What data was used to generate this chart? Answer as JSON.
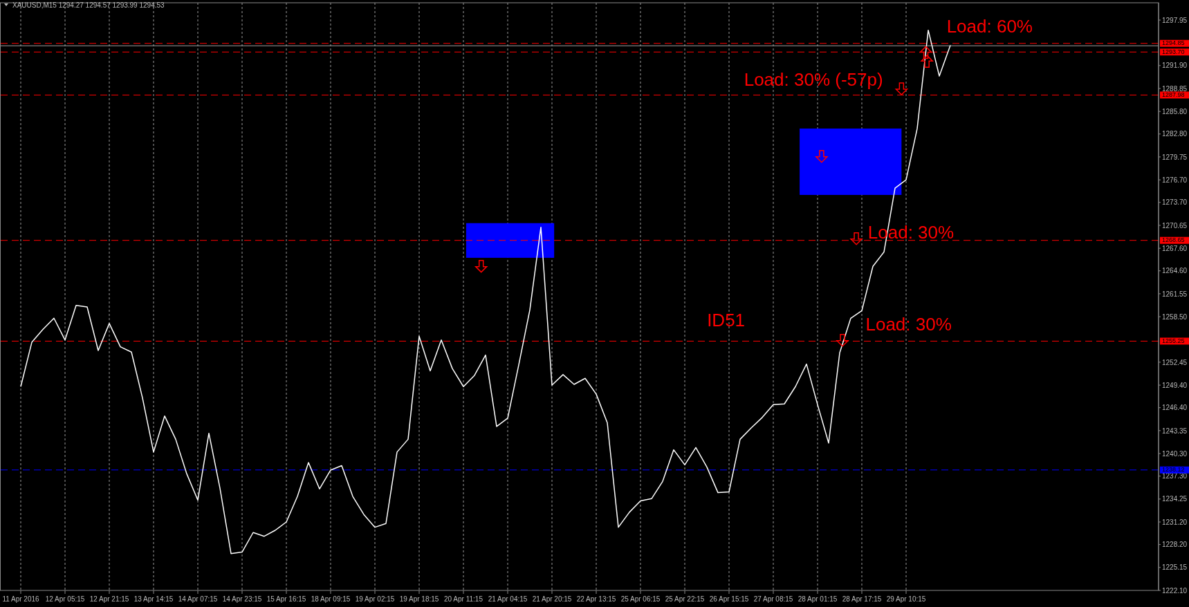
{
  "chart_data": {
    "type": "line",
    "title": "XAUUSD,M15  1294.27 1294.57 1293.99 1294.53",
    "categories": [
      "11 Apr 2016",
      null,
      null,
      null,
      "12 Apr 05:15",
      null,
      null,
      null,
      "12 Apr 21:15",
      null,
      null,
      null,
      "13 Apr 14:15",
      null,
      null,
      null,
      "14 Apr 07:15",
      null,
      null,
      null,
      "14 Apr 23:15",
      null,
      null,
      null,
      "15 Apr 16:15",
      null,
      null,
      null,
      "18 Apr 09:15",
      null,
      null,
      null,
      "19 Apr 02:15",
      null,
      null,
      null,
      "19 Apr 18:15",
      null,
      null,
      null,
      "20 Apr 11:15",
      null,
      null,
      null,
      "21 Apr 04:15",
      null,
      null,
      null,
      "21 Apr 20:15",
      null,
      null,
      null,
      "22 Apr 13:15",
      null,
      null,
      null,
      "25 Apr 06:15",
      null,
      null,
      null,
      "25 Apr 22:15",
      null,
      null,
      null,
      "26 Apr 15:15",
      null,
      null,
      null,
      "27 Apr 08:15",
      null,
      null,
      null,
      "28 Apr 01:15",
      null,
      null,
      null,
      "28 Apr 17:15",
      null,
      null,
      null,
      "29 Apr 10:15",
      null,
      null,
      null,
      null,
      null,
      null,
      null,
      null,
      null,
      null,
      null,
      null,
      null,
      null,
      null,
      null,
      null,
      null,
      null,
      null,
      null
    ],
    "ylim": [
      1222.1,
      1300.25
    ],
    "yticks": [
      {
        "value": 1297.95,
        "label": "1297.95"
      },
      {
        "value": 1291.9,
        "label": "1291.90"
      },
      {
        "value": 1288.85,
        "label": "1288.85"
      },
      {
        "value": 1285.8,
        "label": "1285.80"
      },
      {
        "value": 1282.8,
        "label": "1282.80"
      },
      {
        "value": 1279.75,
        "label": "1279.75"
      },
      {
        "value": 1276.7,
        "label": "1276.70"
      },
      {
        "value": 1273.7,
        "label": "1273.70"
      },
      {
        "value": 1270.65,
        "label": "1270.65"
      },
      {
        "value": 1267.6,
        "label": "1267.60"
      },
      {
        "value": 1264.6,
        "label": "1264.60"
      },
      {
        "value": 1261.55,
        "label": "1261.55"
      },
      {
        "value": 1258.5,
        "label": "1258.50"
      },
      {
        "value": 1252.45,
        "label": "1252.45"
      },
      {
        "value": 1249.4,
        "label": "1249.40"
      },
      {
        "value": 1246.4,
        "label": "1246.40"
      },
      {
        "value": 1243.35,
        "label": "1243.35"
      },
      {
        "value": 1240.3,
        "label": "1240.30"
      },
      {
        "value": 1237.3,
        "label": "1237.30"
      },
      {
        "value": 1234.25,
        "label": "1234.25"
      },
      {
        "value": 1231.2,
        "label": "1231.20"
      },
      {
        "value": 1228.2,
        "label": "1228.20"
      },
      {
        "value": 1225.15,
        "label": "1225.15"
      },
      {
        "value": 1222.1,
        "label": "1222.10"
      }
    ],
    "grid": "x",
    "series": [
      {
        "color": "#ffffff",
        "values": [
          1249.2,
          1255.1,
          1256.8,
          1258.3,
          1255.4,
          1260.0,
          1259.8,
          1254.0,
          1257.6,
          1254.5,
          1253.8,
          1247.7,
          1240.5,
          1245.3,
          1242.2,
          1237.6,
          1234.1,
          1243.0,
          1235.7,
          1227.0,
          1227.2,
          1229.8,
          1229.3,
          1230.1,
          1231.2,
          1234.6,
          1239.1,
          1235.6,
          1238.1,
          1238.7,
          1234.6,
          1232.2,
          1230.5,
          1231.0,
          1240.5,
          1242.2,
          1255.9,
          1251.3,
          1255.4,
          1251.6,
          1249.2,
          1250.7,
          1253.4,
          1243.9,
          1245.0,
          1252.1,
          1259.4,
          1270.4,
          1249.4,
          1250.8,
          1249.5,
          1250.3,
          1248.2,
          1244.4,
          1230.5,
          1232.5,
          1234.0,
          1234.3,
          1236.6,
          1240.8,
          1238.8,
          1241.1,
          1238.5,
          1235.1,
          1235.2,
          1242.2,
          1243.7,
          1245.1,
          1246.8,
          1246.9,
          1249.2,
          1252.2,
          1246.8,
          1241.7,
          1253.7,
          1258.3,
          1259.3,
          1265.2,
          1267.1,
          1275.6,
          1276.7,
          1283.5,
          1296.6,
          1290.5,
          1294.6,
          null,
          null,
          null,
          null,
          null,
          null,
          null,
          null,
          null,
          null,
          null,
          null,
          null,
          null,
          null,
          null,
          null
        ]
      }
    ],
    "ref_lines": [
      {
        "axis": "y",
        "value": 1294.85,
        "label": "1294.85",
        "color": "#ff0000",
        "line_style": "dashed"
      },
      {
        "axis": "y",
        "value": 1293.7,
        "label": "1293.70",
        "color": "#ff0000",
        "line_style": "dashed"
      },
      {
        "axis": "y",
        "value": 1287.98,
        "label": "1287.98",
        "color": "#ff0000",
        "line_style": "dashed"
      },
      {
        "axis": "y",
        "value": 1268.65,
        "label": "1268.65",
        "color": "#ff0000",
        "line_style": "dashed"
      },
      {
        "axis": "y",
        "value": 1255.25,
        "label": "1255.25",
        "color": "#ff0000",
        "line_style": "dashed"
      },
      {
        "axis": "y",
        "value": 1238.12,
        "label": "1238.12",
        "color": "#0000ff",
        "line_style": "dashed"
      },
      {
        "axis": "y",
        "value": 1294.53,
        "color": "#a0a0a0",
        "line_style": "solid"
      }
    ],
    "annotations": [
      "Load: 60%",
      "Load: 30% (-57p)",
      "Load: 30%",
      "ID51",
      "Load: 30%"
    ]
  }
}
